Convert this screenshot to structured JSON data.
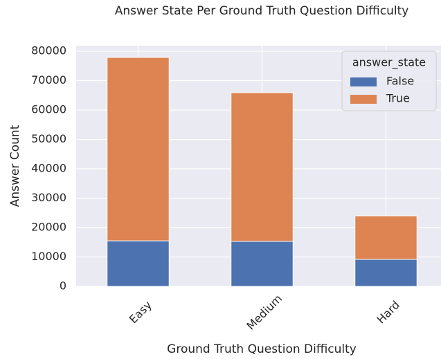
{
  "chart_data": {
    "type": "stacked_bar",
    "title": "Answer State Per Ground Truth Question Difficulty",
    "xlabel": "Ground Truth Question Difficulty",
    "ylabel": "Answer Count",
    "categories": [
      "Easy",
      "Medium",
      "Hard"
    ],
    "series": [
      {
        "name": "False",
        "color": "#4c72b0",
        "values": [
          15500,
          15300,
          9200
        ]
      },
      {
        "name": "True",
        "color": "#dd8452",
        "values": [
          62400,
          50600,
          14800
        ]
      }
    ],
    "legend_title": "answer_state",
    "legend": "upper right",
    "ylim": [
      0,
      81900
    ],
    "yticks": [
      0,
      10000,
      20000,
      30000,
      40000,
      50000,
      60000,
      70000,
      80000
    ],
    "grid": true
  }
}
